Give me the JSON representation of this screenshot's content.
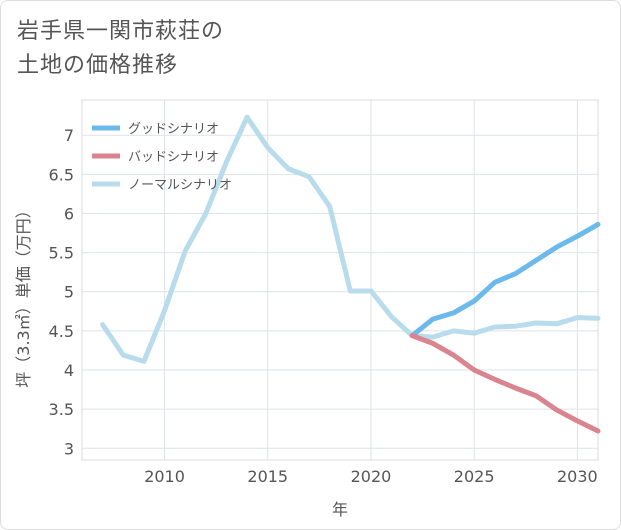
{
  "title_lines": [
    "岩手県一関市萩荘の",
    "土地の価格推移"
  ],
  "chart_data": {
    "type": "line",
    "title": "岩手県一関市萩荘の土地の価格推移",
    "xlabel": "年",
    "ylabel": "坪（3.3㎡）単価（万円）",
    "xlim": [
      2006,
      2031
    ],
    "ylim": [
      2.85,
      7.45
    ],
    "xticks": [
      2010,
      2015,
      2020,
      2025,
      2030
    ],
    "yticks": [
      3,
      3.5,
      4,
      4.5,
      5,
      5.5,
      6,
      6.5,
      7
    ],
    "ytick_labels": [
      "3",
      "3.5",
      "4",
      "4.5",
      "5",
      "5.5",
      "6",
      "6.5",
      "7"
    ],
    "grid": true,
    "legend_position": "top-left",
    "series": [
      {
        "name": "グッドシナリオ",
        "color": "#6cb9ec",
        "x": [
          2022,
          2023,
          2024,
          2025,
          2026,
          2027,
          2028,
          2029,
          2030,
          2031
        ],
        "y": [
          4.44,
          4.65,
          4.73,
          4.88,
          5.12,
          5.23,
          5.4,
          5.57,
          5.71,
          5.86
        ]
      },
      {
        "name": "バッドシナリオ",
        "color": "#d9848e",
        "x": [
          2022,
          2023,
          2024,
          2025,
          2026,
          2027,
          2028,
          2029,
          2030,
          2031
        ],
        "y": [
          4.44,
          4.34,
          4.19,
          4.0,
          3.88,
          3.77,
          3.67,
          3.49,
          3.35,
          3.22
        ]
      },
      {
        "name": "ノーマルシナリオ",
        "color": "#b8dcec",
        "x": [
          2007,
          2008,
          2009,
          2010,
          2011,
          2012,
          2013,
          2014,
          2015,
          2016,
          2017,
          2018,
          2019,
          2020,
          2021,
          2022,
          2023,
          2024,
          2025,
          2026,
          2027,
          2028,
          2029,
          2030,
          2031
        ],
        "y": [
          4.58,
          4.19,
          4.11,
          4.76,
          5.52,
          6.0,
          6.66,
          7.23,
          6.84,
          6.57,
          6.47,
          6.09,
          5.01,
          5.01,
          4.68,
          4.44,
          4.42,
          4.5,
          4.47,
          4.55,
          4.56,
          4.6,
          4.59,
          4.67,
          4.66
        ]
      }
    ]
  }
}
